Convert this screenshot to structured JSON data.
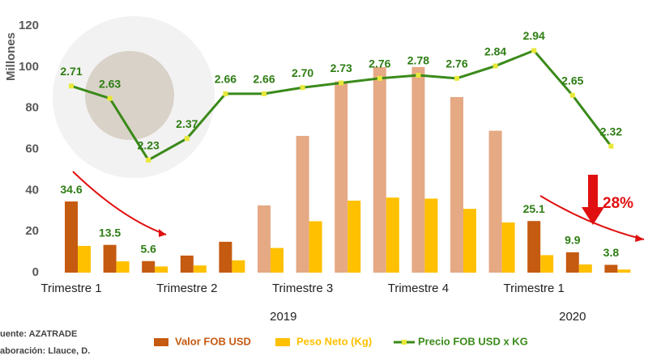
{
  "chart_data": {
    "type": "bar_line",
    "y_axis_label": "Millones",
    "categories": [
      "Trimestre 1",
      null,
      null,
      "Trimestre 2",
      null,
      null,
      "Trimestre 3",
      null,
      null,
      "Trimestre 4",
      null,
      null,
      "Trimestre 1",
      null,
      null
    ],
    "year_groups": [
      {
        "label": "2019",
        "start": 0,
        "end": 11
      },
      {
        "label": "2020",
        "start": 12,
        "end": 14
      }
    ],
    "ylim": [
      0,
      120
    ],
    "yticks": [
      0,
      20,
      40,
      60,
      80,
      100,
      120
    ],
    "y2lim": [
      1.5,
      3.1
    ],
    "series": [
      {
        "name": "Valor FOB USD",
        "type": "bar",
        "color": "#c55a11",
        "colors": [
          "#c55a11",
          "#c55a11",
          "#c55a11",
          "#c55a11",
          "#c55a11",
          "#e5a984",
          "#e5a984",
          "#e5a984",
          "#e5a984",
          "#e5a984",
          "#e5a984",
          "#e5a984",
          "#c55a11",
          "#c55a11",
          "#c55a11"
        ],
        "values": [
          34.6,
          13.5,
          5.6,
          8.3,
          15,
          32.7,
          66.5,
          93,
          100,
          100,
          85.4,
          69,
          25.1,
          9.9,
          3.8
        ],
        "value_labels": [
          "34.6",
          "13.5",
          "5.6",
          null,
          null,
          null,
          null,
          null,
          null,
          null,
          null,
          null,
          "25.1",
          "9.9",
          "3.8"
        ]
      },
      {
        "name": "Peso Neto (Kg)",
        "type": "bar",
        "color": "#ffc000",
        "values": [
          13,
          5.5,
          3,
          3.5,
          6,
          12,
          25,
          35,
          36.5,
          36,
          31,
          24.4,
          8.5,
          4,
          1.5
        ]
      },
      {
        "name": "Precio FOB USD x KG",
        "type": "line",
        "axis": "y2",
        "color": "#3a8a1a",
        "marker_color": "#e8e83a",
        "values": [
          2.71,
          2.63,
          2.23,
          2.37,
          2.66,
          2.66,
          2.7,
          2.73,
          2.76,
          2.78,
          2.76,
          2.84,
          2.94,
          2.65,
          2.32
        ],
        "value_labels": [
          "2.71",
          "2.63",
          "2.23",
          "2.37",
          "2.66",
          "2.66",
          "2.70",
          "2.73",
          "2.76",
          "2.78",
          "2.76",
          "2.84",
          "2.94",
          "2.65",
          "2.32"
        ]
      }
    ],
    "annotation": "28%",
    "sources": [
      "uente: AZATRADE",
      "aboración: Llauce, D."
    ]
  }
}
